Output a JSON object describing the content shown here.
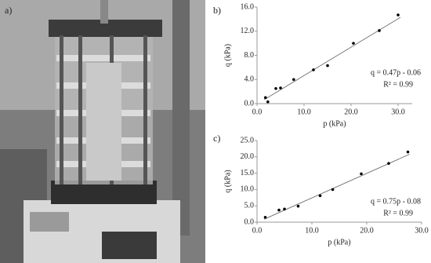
{
  "photo": {
    "label": "a)"
  },
  "chart_data": [
    {
      "type": "scatter",
      "label": "b)",
      "xlabel": "p (kPa)",
      "ylabel": "q (kPa)",
      "x": [
        1.8,
        2.3,
        4,
        5,
        7.8,
        12,
        15,
        20.5,
        26,
        30
      ],
      "values": [
        1.0,
        0.3,
        2.5,
        2.6,
        4.0,
        5.6,
        6.3,
        10.0,
        12.1,
        14.7
      ],
      "color": "#000000",
      "trendline": {
        "x": [
          1.5,
          30.5
        ],
        "y": [
          0.65,
          14.3
        ],
        "color": "#7a7a7a"
      },
      "annotations": [
        "q = 0.47p - 0.06",
        "R² = 0.99"
      ],
      "xlim": [
        0,
        33
      ],
      "ylim": [
        0,
        16
      ],
      "xticks": [
        {
          "value": 0,
          "label": "0.0"
        },
        {
          "value": 10,
          "label": "10.0"
        },
        {
          "value": 20,
          "label": "20.0"
        },
        {
          "value": 30,
          "label": "30.0"
        }
      ],
      "yticks": [
        {
          "value": 0,
          "label": "0.0"
        },
        {
          "value": 4,
          "label": "4.0"
        },
        {
          "value": 8,
          "label": "8.0"
        },
        {
          "value": 12,
          "label": "12.0"
        },
        {
          "value": 16,
          "label": "16.0"
        }
      ],
      "grid": false
    },
    {
      "type": "scatter",
      "label": "c)",
      "xlabel": "p (kPa)",
      "ylabel": "q (kPa)",
      "x": [
        1.5,
        4,
        5,
        7.5,
        11.5,
        13.8,
        19,
        24,
        27.5
      ],
      "values": [
        1.5,
        3.7,
        4.0,
        4.9,
        8.1,
        10.0,
        14.8,
        18.0,
        21.5
      ],
      "color": "#000000",
      "trendline": {
        "x": [
          1.3,
          27.8
        ],
        "y": [
          0.9,
          20.8
        ],
        "color": "#7a7a7a"
      },
      "annotations": [
        "q = 0.75p - 0.08",
        "R² = 0.99"
      ],
      "xlim": [
        0,
        30
      ],
      "ylim": [
        0,
        25
      ],
      "xticks": [
        {
          "value": 0,
          "label": "0.0"
        },
        {
          "value": 10,
          "label": "10.0"
        },
        {
          "value": 20,
          "label": "20.0"
        },
        {
          "value": 30,
          "label": "30.0"
        }
      ],
      "yticks": [
        {
          "value": 0,
          "label": "0.0"
        },
        {
          "value": 5,
          "label": "5.0"
        },
        {
          "value": 10,
          "label": "10.0"
        },
        {
          "value": 15,
          "label": "15.0"
        },
        {
          "value": 20,
          "label": "20.0"
        },
        {
          "value": 25,
          "label": "25.0"
        }
      ],
      "grid": false
    }
  ]
}
